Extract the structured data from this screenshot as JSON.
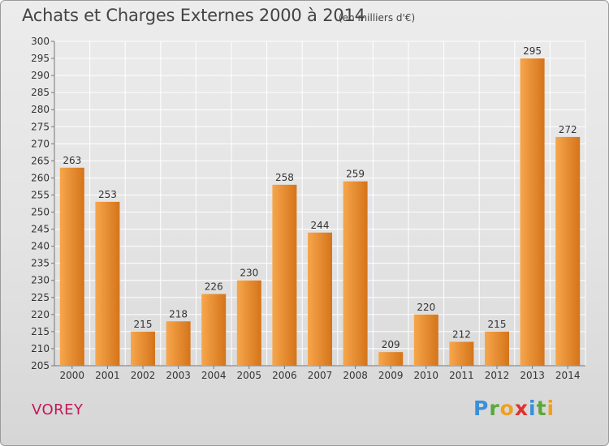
{
  "header": {
    "title": "Achats et Charges Externes 2000 à 2014",
    "subtitle": "(en milliers d'€)"
  },
  "footer": {
    "town": "VOREY",
    "logo_text": "Proxiti",
    "logo_letters": [
      "P",
      "r",
      "o",
      "x",
      "i",
      "t",
      "i"
    ],
    "logo_colors": [
      "#3a8fd8",
      "#5aa83a",
      "#f0a020",
      "#e03030",
      "#3a8fd8",
      "#5aa83a",
      "#f0a020"
    ]
  },
  "chart_data": {
    "type": "bar",
    "title": "Achats et Charges Externes 2000 à 2014",
    "subtitle": "(en milliers d'€)",
    "categories": [
      "2000",
      "2001",
      "2002",
      "2003",
      "2004",
      "2005",
      "2006",
      "2007",
      "2008",
      "2009",
      "2010",
      "2011",
      "2012",
      "2013",
      "2014"
    ],
    "values": [
      263,
      253,
      215,
      218,
      226,
      230,
      258,
      244,
      259,
      209,
      220,
      212,
      215,
      295,
      272
    ],
    "ylim": [
      205,
      300
    ],
    "yticks": [
      205,
      210,
      215,
      220,
      225,
      230,
      235,
      240,
      245,
      250,
      255,
      260,
      265,
      270,
      275,
      280,
      285,
      290,
      295,
      300
    ],
    "grid": true,
    "xlabel": "",
    "ylabel": "",
    "colors": {
      "bar_light": "#f7a64c",
      "bar_dark": "#d4741a",
      "grid": "#ffffff",
      "text": "#333333"
    }
  }
}
